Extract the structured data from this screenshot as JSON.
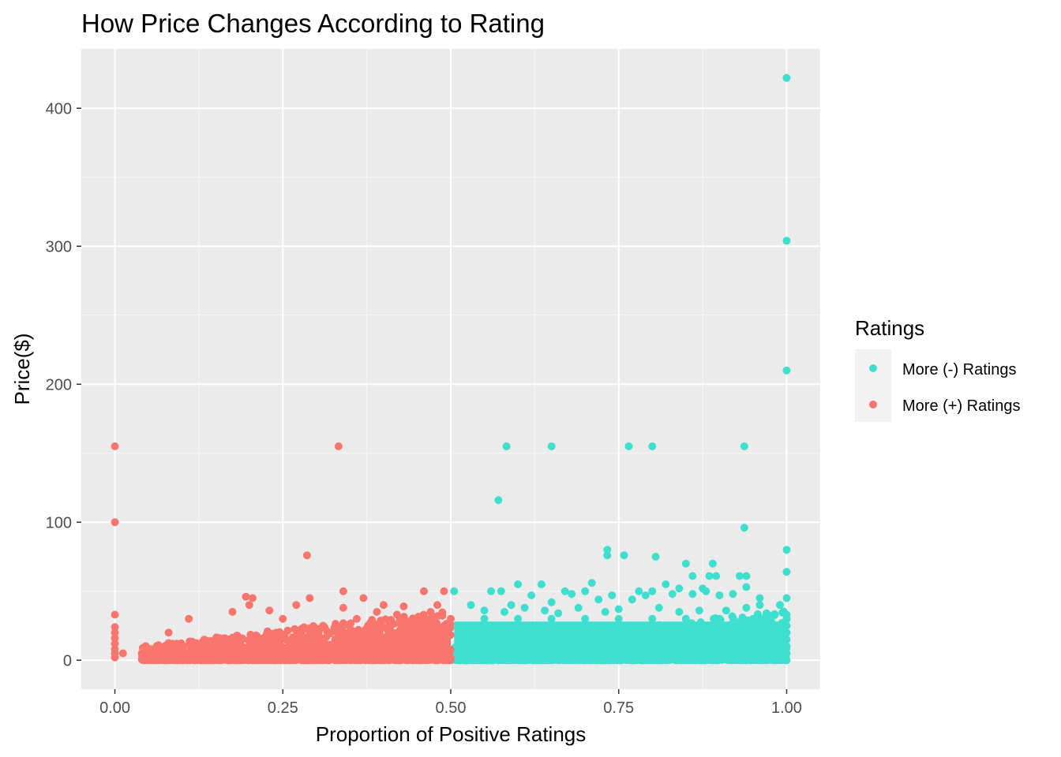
{
  "chart_data": {
    "type": "scatter",
    "title": "How Price Changes According to Rating",
    "xlabel": "Proportion of Positive Ratings",
    "ylabel": "Price($)",
    "xlim": [
      -0.05,
      1.05
    ],
    "ylim": [
      -21,
      443
    ],
    "x_ticks": [
      {
        "value": 0,
        "label": "0.00"
      },
      {
        "value": 0.25,
        "label": "0.25"
      },
      {
        "value": 0.5,
        "label": "0.50"
      },
      {
        "value": 0.75,
        "label": "0.75"
      },
      {
        "value": 1,
        "label": "1.00"
      }
    ],
    "y_ticks": [
      {
        "value": 0,
        "label": "0"
      },
      {
        "value": 100,
        "label": "100"
      },
      {
        "value": 200,
        "label": "200"
      },
      {
        "value": 300,
        "label": "300"
      },
      {
        "value": 400,
        "label": "400"
      }
    ],
    "grid": true,
    "legend": {
      "title": "Ratings",
      "position": "right"
    },
    "series": [
      {
        "name": "More (-) Ratings",
        "color": "#3fdfd0",
        "points": [
          [
            1.0,
            422
          ],
          [
            1.0,
            304
          ],
          [
            1.0,
            210
          ],
          [
            0.583,
            155
          ],
          [
            0.65,
            155
          ],
          [
            0.765,
            155
          ],
          [
            0.8,
            155
          ],
          [
            0.937,
            155
          ],
          [
            0.571,
            116
          ],
          [
            0.937,
            96
          ],
          [
            1.0,
            80
          ],
          [
            0.733,
            80
          ],
          [
            0.733,
            76
          ],
          [
            0.758,
            76
          ],
          [
            0.805,
            75
          ],
          [
            0.85,
            70
          ],
          [
            0.89,
            70
          ],
          [
            1.0,
            64
          ],
          [
            0.93,
            61
          ],
          [
            0.94,
            61
          ],
          [
            0.86,
            61
          ],
          [
            0.885,
            61
          ],
          [
            0.895,
            61
          ],
          [
            0.6,
            55
          ],
          [
            0.635,
            55
          ],
          [
            0.71,
            56
          ],
          [
            0.82,
            55
          ],
          [
            0.84,
            52
          ],
          [
            0.875,
            52
          ],
          [
            0.94,
            53
          ],
          [
            0.505,
            50
          ],
          [
            0.56,
            50
          ],
          [
            0.575,
            50
          ],
          [
            0.62,
            47
          ],
          [
            0.67,
            50
          ],
          [
            0.68,
            48
          ],
          [
            0.7,
            50
          ],
          [
            0.74,
            47
          ],
          [
            0.78,
            50
          ],
          [
            0.79,
            47
          ],
          [
            0.8,
            50
          ],
          [
            0.83,
            48
          ],
          [
            0.86,
            48
          ],
          [
            0.88,
            50
          ],
          [
            0.9,
            47
          ],
          [
            0.92,
            48
          ],
          [
            0.96,
            45
          ],
          [
            1.0,
            45
          ],
          [
            0.59,
            40
          ],
          [
            0.65,
            42
          ],
          [
            0.72,
            44
          ],
          [
            0.77,
            44
          ],
          [
            0.96,
            40
          ],
          [
            0.99,
            40
          ],
          [
            0.53,
            40
          ],
          [
            0.55,
            36
          ],
          [
            0.58,
            35
          ],
          [
            0.61,
            38
          ],
          [
            0.64,
            36
          ],
          [
            0.66,
            34
          ],
          [
            0.69,
            38
          ],
          [
            0.73,
            35
          ],
          [
            0.75,
            37
          ],
          [
            0.81,
            38
          ],
          [
            0.84,
            35
          ],
          [
            0.87,
            36
          ],
          [
            0.91,
            36
          ],
          [
            0.94,
            38
          ],
          [
            0.97,
            34
          ],
          [
            1.0,
            33
          ],
          [
            1.0,
            30
          ],
          [
            1.0,
            25
          ],
          [
            1.0,
            20
          ],
          [
            1.0,
            15
          ],
          [
            1.0,
            10
          ],
          [
            1.0,
            5
          ],
          [
            1.0,
            0
          ],
          [
            0.95,
            30
          ],
          [
            0.9,
            30
          ],
          [
            0.85,
            30
          ],
          [
            0.8,
            30
          ],
          [
            0.75,
            30
          ],
          [
            0.7,
            30
          ],
          [
            0.65,
            30
          ],
          [
            0.6,
            30
          ],
          [
            0.55,
            30
          ]
        ]
      },
      {
        "name": "More (+) Ratings",
        "color": "#f8766d",
        "points": [
          [
            0.0,
            155
          ],
          [
            0.333,
            155
          ],
          [
            0.0,
            100
          ],
          [
            0.286,
            76
          ],
          [
            0.0,
            33
          ],
          [
            0.0,
            24
          ],
          [
            0.0,
            20
          ],
          [
            0.0,
            16
          ],
          [
            0.0,
            12
          ],
          [
            0.0,
            8
          ],
          [
            0.0,
            5
          ],
          [
            0.0,
            2
          ],
          [
            0.012,
            5
          ],
          [
            0.04,
            5
          ],
          [
            0.06,
            6
          ],
          [
            0.08,
            20
          ],
          [
            0.11,
            30
          ],
          [
            0.113,
            10
          ],
          [
            0.195,
            46
          ],
          [
            0.205,
            45
          ],
          [
            0.2,
            40
          ],
          [
            0.175,
            35
          ],
          [
            0.23,
            36
          ],
          [
            0.25,
            30
          ],
          [
            0.27,
            40
          ],
          [
            0.29,
            45
          ],
          [
            0.34,
            50
          ],
          [
            0.34,
            38
          ],
          [
            0.37,
            45
          ],
          [
            0.4,
            40
          ],
          [
            0.43,
            39
          ],
          [
            0.46,
            50
          ],
          [
            0.49,
            50
          ],
          [
            0.48,
            40
          ],
          [
            0.47,
            35
          ],
          [
            0.45,
            30
          ],
          [
            0.42,
            33
          ],
          [
            0.39,
            35
          ],
          [
            0.36,
            30
          ],
          [
            0.31,
            25
          ],
          [
            0.28,
            22
          ],
          [
            0.24,
            20
          ],
          [
            0.21,
            18
          ],
          [
            0.17,
            15
          ],
          [
            0.15,
            12
          ],
          [
            0.13,
            13
          ],
          [
            0.1,
            10
          ],
          [
            0.09,
            8
          ],
          [
            0.07,
            5
          ],
          [
            0.3,
            22
          ],
          [
            0.33,
            24
          ],
          [
            0.38,
            27
          ],
          [
            0.41,
            26
          ],
          [
            0.44,
            28
          ],
          [
            0.5,
            30
          ],
          [
            0.49,
            25
          ]
        ]
      }
    ]
  }
}
